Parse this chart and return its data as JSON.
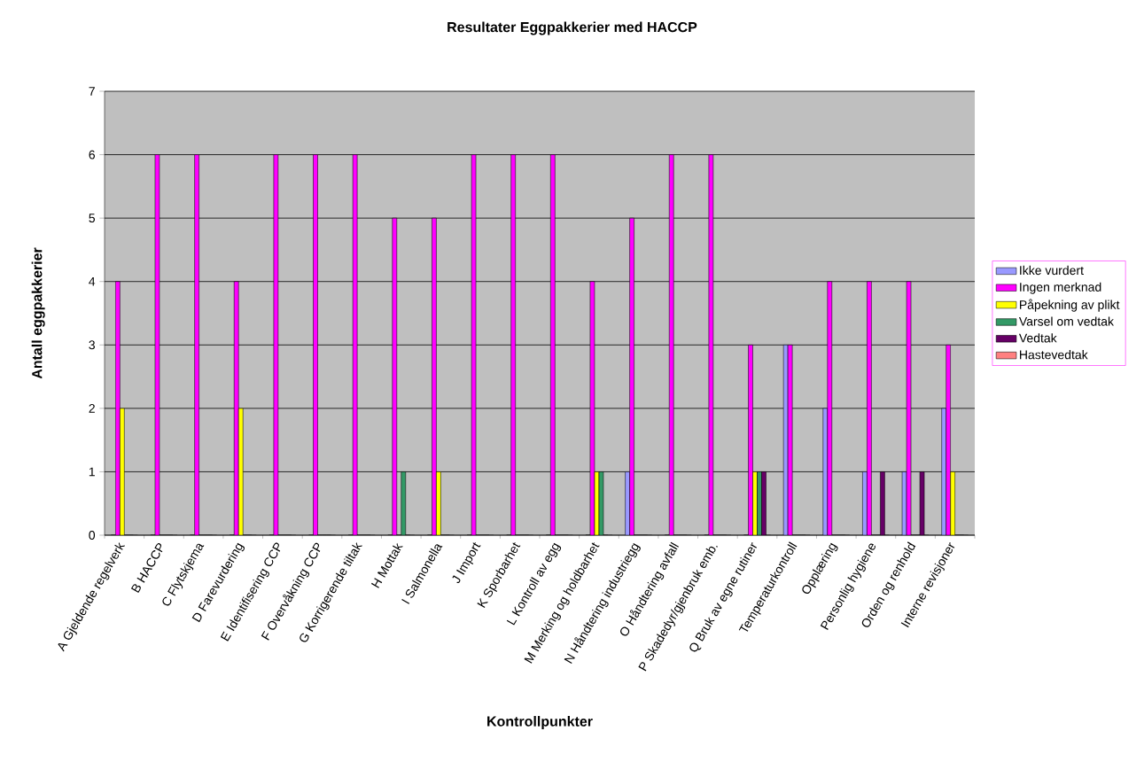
{
  "chart_data": {
    "type": "bar",
    "title": "Resultater Eggpakkerier med HACCP",
    "xlabel": "Kontrollpunkter",
    "ylabel": "Antall eggpakkerier",
    "categories": [
      "A Gjeldende regelverk",
      "B HACCP",
      "C Flytskjema",
      "D Farevurdering",
      "E Identifisering CCP",
      "F Overvåkning CCP",
      "G Korrigerende tiltak",
      "H Mottak",
      "I Salmonella",
      "J Import",
      "K Sporbarhet",
      "L Kontroll av egg",
      "M Merking og holdbarhet",
      "N Håndtering industriegg",
      "O Håndtering avfall",
      "P Skadedyr/gjenbruk emb.",
      "Q Bruk av egne rutiner",
      "Temperaturkontroll",
      "Opplæring",
      "Personlig hygiene",
      "Orden og renhold",
      "Interne revisjoner"
    ],
    "series": [
      {
        "name": "Ikke vurdert",
        "color": "#9999ff",
        "values": [
          0,
          0,
          0,
          0,
          0,
          0,
          0,
          0,
          0,
          0,
          0,
          0,
          0,
          1,
          0,
          0,
          0,
          3,
          2,
          1,
          1,
          2
        ]
      },
      {
        "name": "Ingen merknad",
        "color": "#ff00ff",
        "values": [
          4,
          6,
          6,
          4,
          6,
          6,
          6,
          5,
          5,
          6,
          6,
          6,
          4,
          5,
          6,
          6,
          3,
          3,
          4,
          4,
          4,
          3
        ]
      },
      {
        "name": "Påpekning av plikt",
        "color": "#ffff00",
        "values": [
          2,
          0,
          0,
          2,
          0,
          0,
          0,
          0,
          1,
          0,
          0,
          0,
          1,
          0,
          0,
          0,
          1,
          0,
          0,
          0,
          0,
          1
        ]
      },
      {
        "name": "Varsel om vedtak",
        "color": "#339966",
        "values": [
          0,
          0,
          0,
          0,
          0,
          0,
          0,
          1,
          0,
          0,
          0,
          0,
          1,
          0,
          0,
          0,
          1,
          0,
          0,
          0,
          0,
          0
        ]
      },
      {
        "name": "Vedtak",
        "color": "#660066",
        "values": [
          0,
          0,
          0,
          0,
          0,
          0,
          0,
          0,
          0,
          0,
          0,
          0,
          0,
          0,
          0,
          0,
          1,
          0,
          0,
          1,
          1,
          0
        ]
      },
      {
        "name": "Hastevedtak",
        "color": "#ff8080",
        "values": [
          0,
          0,
          0,
          0,
          0,
          0,
          0,
          0,
          0,
          0,
          0,
          0,
          0,
          0,
          0,
          0,
          0,
          0,
          0,
          0,
          0,
          0
        ]
      }
    ],
    "ylim": [
      0,
      7
    ],
    "yticks": [
      0,
      1,
      2,
      3,
      4,
      5,
      6,
      7
    ],
    "grid": "y",
    "legend": "right"
  }
}
